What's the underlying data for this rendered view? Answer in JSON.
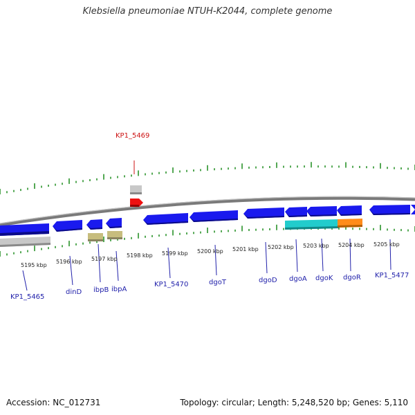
{
  "title": "Klebsiella pneumoniae NTUH-K2044, complete genome",
  "footer": {
    "accession": "Accession: NC_012731",
    "topology": "Topology: circular; Length: 5,248,520 bp; Genes: 5,110"
  },
  "colors": {
    "forward_strand": "#1a1aee",
    "reverse_strand": "#1a1aee",
    "highlight_gene": "#ee1111",
    "pseudo_gene": "#c8c8c8",
    "other_feature": "#c7bd7e",
    "operon_cyan": "#22cccc",
    "operon_orange": "#ff8c1a",
    "tick_marks": "#1a8a1a",
    "label_blue": "#2020aa",
    "label_red": "#cc1111"
  },
  "scale": {
    "ticks": [
      {
        "label": "5195 kbp",
        "kbp": 5195
      },
      {
        "label": "5196 kbp",
        "kbp": 5196
      },
      {
        "label": "5197 kbp",
        "kbp": 5197
      },
      {
        "label": "5198 kbp",
        "kbp": 5198
      },
      {
        "label": "5199 kbp",
        "kbp": 5199
      },
      {
        "label": "5200 kbp",
        "kbp": 5200
      },
      {
        "label": "5201 kbp",
        "kbp": 5201
      },
      {
        "label": "5202 kbp",
        "kbp": 5202
      },
      {
        "label": "5203 kbp",
        "kbp": 5203
      },
      {
        "label": "5204 kbp",
        "kbp": 5204
      },
      {
        "label": "5205 kbp",
        "kbp": 5205
      }
    ]
  },
  "genes": [
    {
      "label": "KP1_5465",
      "strand": "reverse"
    },
    {
      "label": "dinD",
      "strand": "reverse"
    },
    {
      "label": "ibpB",
      "strand": "reverse"
    },
    {
      "label": "ibpA",
      "strand": "reverse"
    },
    {
      "label": "KP1_5469",
      "strand": "forward",
      "highlight": true
    },
    {
      "label": "KP1_5470",
      "strand": "reverse"
    },
    {
      "label": "dgoT",
      "strand": "reverse"
    },
    {
      "label": "dgoD",
      "strand": "reverse"
    },
    {
      "label": "dgoA",
      "strand": "reverse"
    },
    {
      "label": "dgoK",
      "strand": "reverse"
    },
    {
      "label": "dgoR",
      "strand": "reverse"
    },
    {
      "label": "KP1_5477",
      "strand": "reverse"
    }
  ]
}
